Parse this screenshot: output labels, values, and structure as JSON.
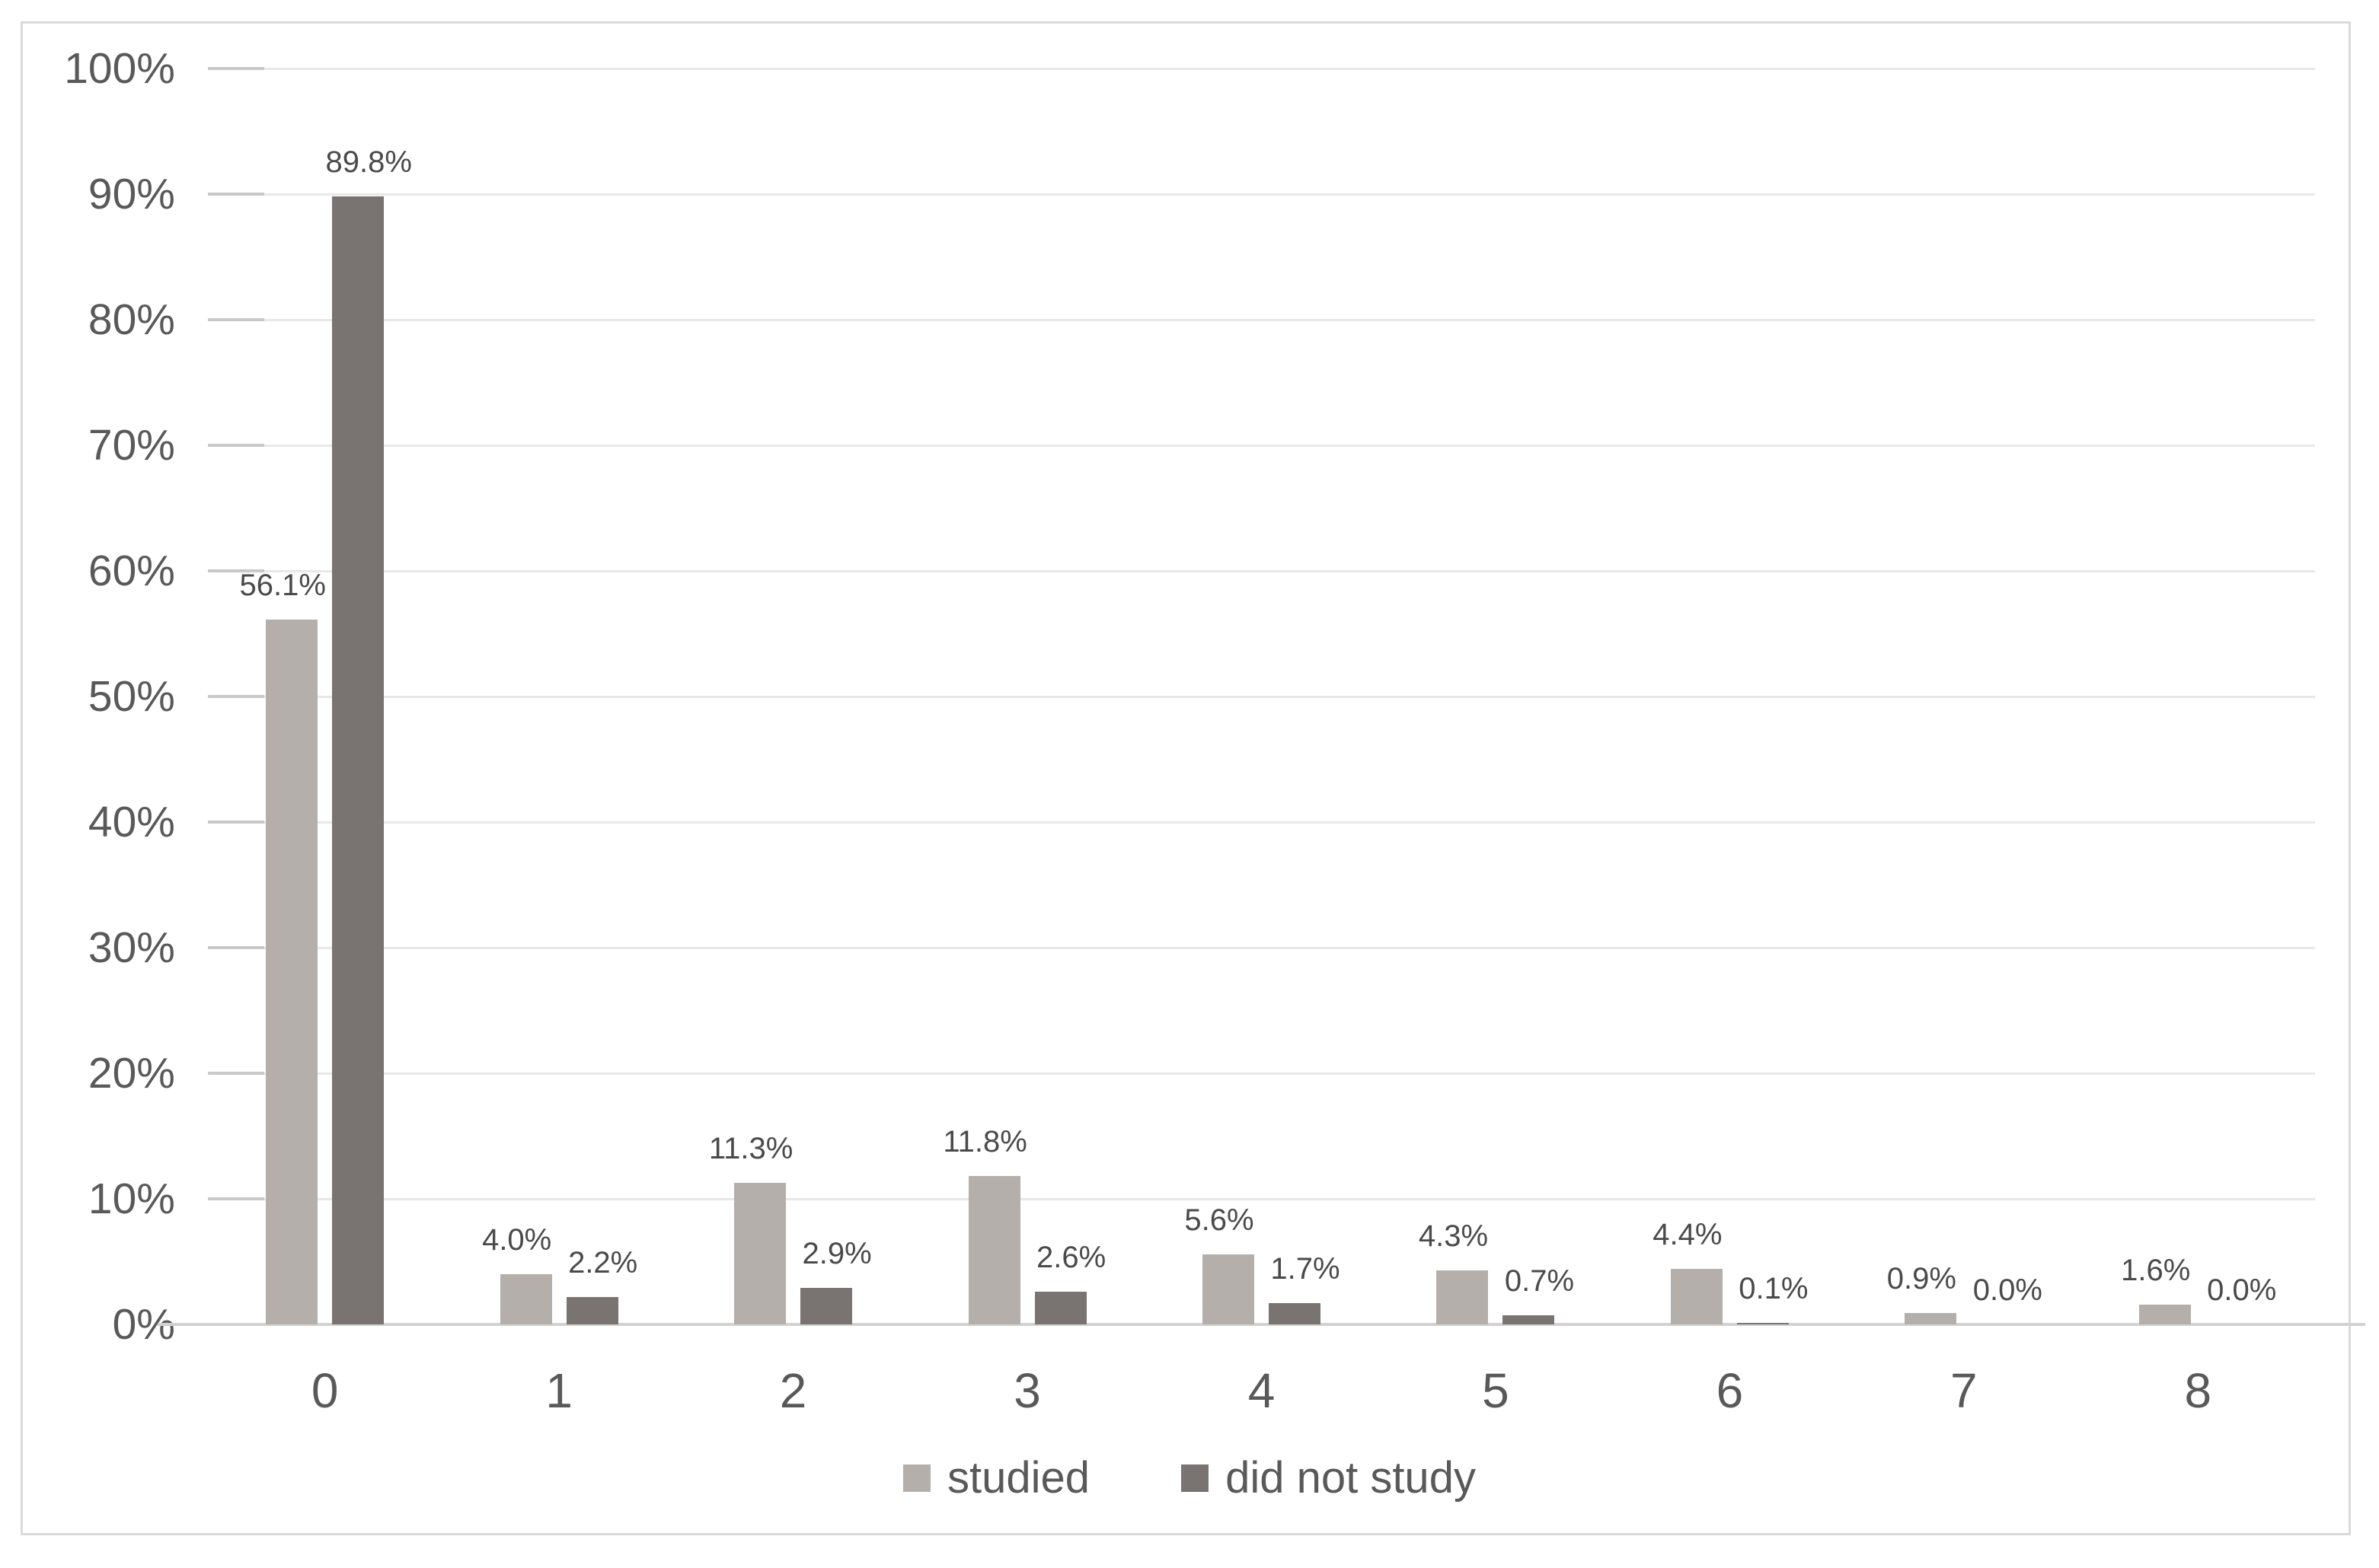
{
  "chart_data": {
    "type": "bar",
    "title": "",
    "categories": [
      "0",
      "1",
      "2",
      "3",
      "4",
      "5",
      "6",
      "7",
      "8"
    ],
    "series": [
      {
        "name": "studied",
        "color": "#b4afab",
        "values": [
          56.1,
          4.0,
          11.3,
          11.8,
          5.6,
          4.3,
          4.4,
          0.9,
          1.6
        ],
        "labels": [
          "56.1%",
          "4.0%",
          "11.3%",
          "11.8%",
          "5.6%",
          "4.3%",
          "4.4%",
          "0.9%",
          "1.6%"
        ]
      },
      {
        "name": "did not study",
        "color": "#797372",
        "values": [
          89.8,
          2.2,
          2.9,
          2.6,
          1.7,
          0.7,
          0.1,
          0.0,
          0.0
        ],
        "labels": [
          "89.8%",
          "2.2%",
          "2.9%",
          "2.6%",
          "1.7%",
          "0.7%",
          "0.1%",
          "0.0%",
          "0.0%"
        ]
      }
    ],
    "xlabel": "",
    "ylabel": "",
    "ylim": [
      0,
      100
    ],
    "ytick_step": 10,
    "ytick_labels": [
      "0%",
      "10%",
      "20%",
      "30%",
      "40%",
      "50%",
      "60%",
      "70%",
      "80%",
      "90%",
      "100%"
    ],
    "grid": true,
    "legend_position": "bottom",
    "colors": {
      "grid_line": "#e8e8e8",
      "tick_mark": "#c9c9c9",
      "axis_line": "#d4d1d0",
      "frame_border": "#dadada",
      "axis_text": "#595959",
      "data_label_text": "#4a4a4a",
      "background": "#ffffff"
    }
  }
}
